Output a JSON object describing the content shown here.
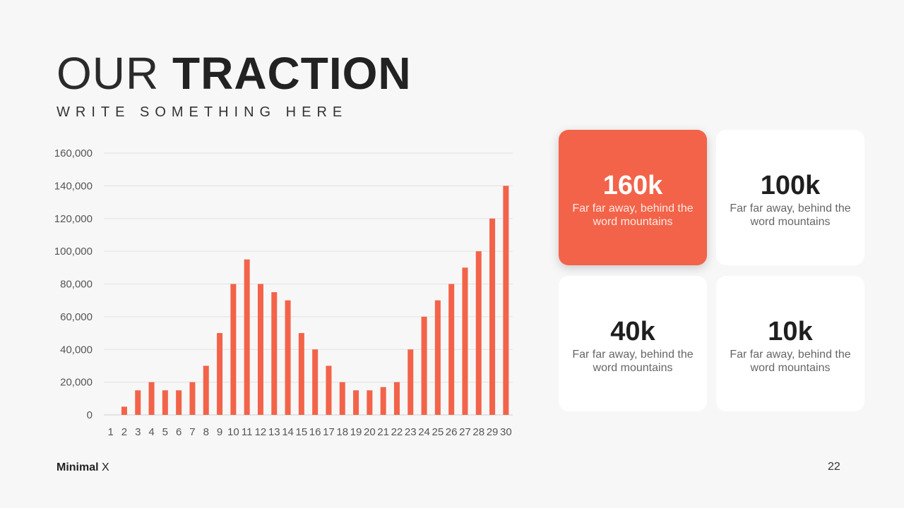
{
  "header": {
    "title_light": "OUR",
    "title_bold": "TRACTION",
    "subtitle": "WRITE SOMETHING HERE"
  },
  "chart_data": {
    "type": "bar",
    "categories": [
      "1",
      "2",
      "3",
      "4",
      "5",
      "6",
      "7",
      "8",
      "9",
      "10",
      "11",
      "12",
      "13",
      "14",
      "15",
      "16",
      "17",
      "18",
      "19",
      "20",
      "21",
      "22",
      "23",
      "24",
      "25",
      "26",
      "27",
      "28",
      "29",
      "30"
    ],
    "values": [
      0,
      5000,
      15000,
      20000,
      15000,
      15000,
      20000,
      30000,
      50000,
      80000,
      95000,
      80000,
      75000,
      70000,
      50000,
      40000,
      30000,
      20000,
      15000,
      15000,
      17000,
      20000,
      40000,
      60000,
      70000,
      80000,
      90000,
      100000,
      120000,
      140000
    ],
    "yticks": [
      "0",
      "20,000",
      "40,000",
      "60,000",
      "80,000",
      "100,000",
      "120,000",
      "140,000",
      "160,000"
    ],
    "ylim": [
      0,
      160000
    ],
    "grid": true,
    "bar_color": "#f26349",
    "title": "",
    "xlabel": "",
    "ylabel": ""
  },
  "stats": [
    {
      "value": "160k",
      "desc": "Far far away, behind the word mountains",
      "highlighted": true
    },
    {
      "value": "100k",
      "desc": "Far far away, behind the word mountains",
      "highlighted": false
    },
    {
      "value": "40k",
      "desc": "Far far away, behind the word mountains",
      "highlighted": false
    },
    {
      "value": "10k",
      "desc": "Far far away, behind the word mountains",
      "highlighted": false
    }
  ],
  "footer": {
    "brand_bold": "Minimal",
    "brand_light": "X",
    "page_number": "22"
  },
  "colors": {
    "accent": "#f26349",
    "background": "#f7f7f7",
    "card": "#ffffff"
  }
}
